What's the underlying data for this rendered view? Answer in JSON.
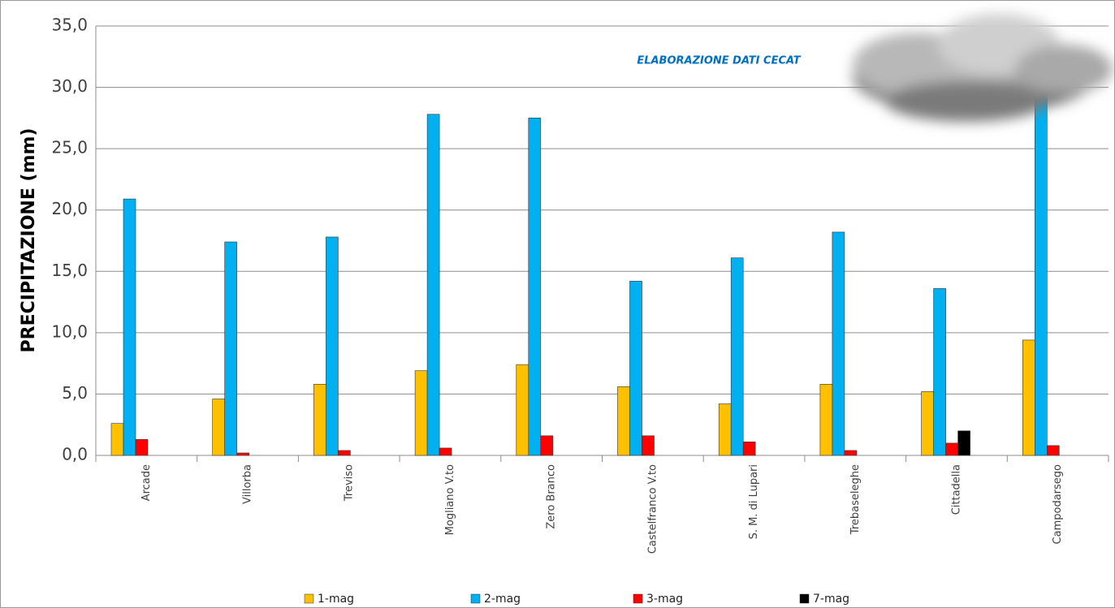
{
  "chart_data": {
    "type": "bar",
    "annotation": "ELABORAZIONE DATI CECAT",
    "y_label": "PRECIPITAZIONE (mm)",
    "categories": [
      "Arcade",
      "Villorba",
      "Treviso",
      "Mogliano V.to",
      "Zero Branco",
      "Castelfranco V.to",
      "S. M. di Lupari",
      "Trebaseleghe",
      "Cittadella",
      "Campodarsego"
    ],
    "series": [
      {
        "name": "1-mag",
        "color": "#ffc000",
        "values": [
          2.6,
          4.6,
          5.8,
          6.9,
          7.4,
          5.6,
          4.2,
          5.8,
          5.2,
          9.4
        ]
      },
      {
        "name": "2-mag",
        "color": "#00b0f0",
        "values": [
          20.9,
          17.4,
          17.8,
          27.8,
          27.5,
          14.2,
          16.1,
          18.2,
          13.6,
          30.5
        ]
      },
      {
        "name": "3-mag",
        "color": "#ff0000",
        "values": [
          1.3,
          0.2,
          0.4,
          0.6,
          1.6,
          1.6,
          1.1,
          0.4,
          1.0,
          0.8
        ]
      },
      {
        "name": "7-mag",
        "color": "#000000",
        "values": [
          null,
          null,
          null,
          null,
          null,
          null,
          null,
          null,
          2.0,
          null
        ]
      }
    ],
    "ylim": [
      0,
      35
    ],
    "yticks": [
      {
        "value": 0,
        "label": "0,0"
      },
      {
        "value": 5,
        "label": "5,0"
      },
      {
        "value": 10,
        "label": "10,0"
      },
      {
        "value": 15,
        "label": "15,0"
      },
      {
        "value": 20,
        "label": "20,0"
      },
      {
        "value": 25,
        "label": "25,0"
      },
      {
        "value": 30,
        "label": "30,0"
      },
      {
        "value": 35,
        "label": "35,0"
      }
    ],
    "grid": true,
    "legend": "bottom"
  }
}
